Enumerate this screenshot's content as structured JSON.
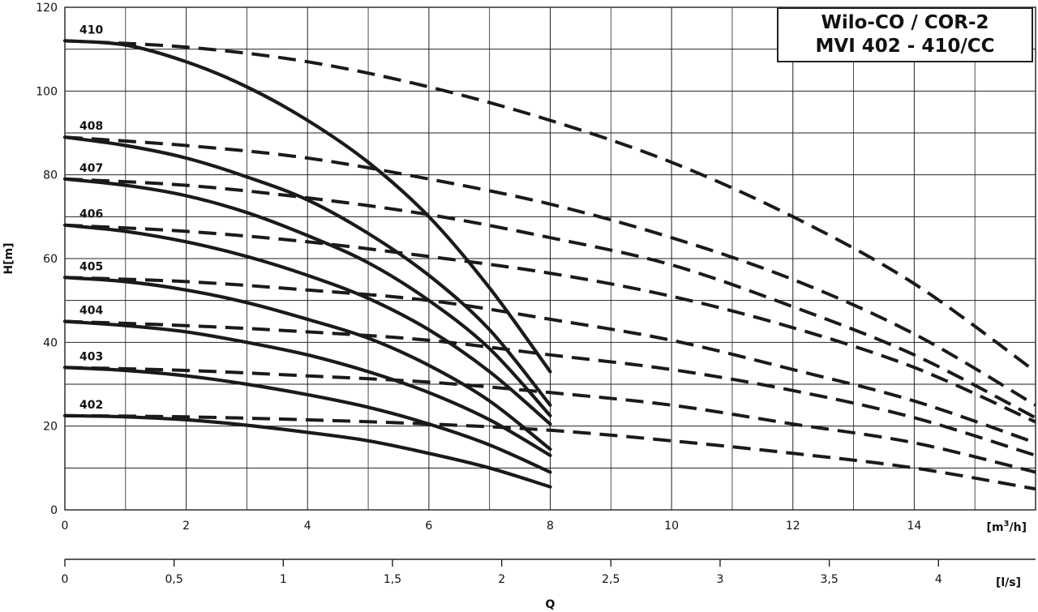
{
  "chart_data": {
    "type": "line",
    "title": [
      "Wilo-CO / COR-2",
      "MVI 402 - 410/CC"
    ],
    "ylabel": "H[m]",
    "xlabel": "Q",
    "x_unit_primary": "[m³/h]",
    "x_unit_secondary": "[l/s]",
    "xlim": [
      0,
      16
    ],
    "ylim": [
      0,
      120
    ],
    "x_ticks": [
      0,
      2,
      4,
      6,
      8,
      10,
      12,
      14
    ],
    "y_ticks": [
      0,
      20,
      40,
      60,
      80,
      100,
      120
    ],
    "secondary_x_ticks": [
      {
        "label": "0",
        "value": 0
      },
      {
        "label": "0,5",
        "value": 0.5
      },
      {
        "label": "1",
        "value": 1
      },
      {
        "label": "1,5",
        "value": 1.5
      },
      {
        "label": "2",
        "value": 2
      },
      {
        "label": "2,5",
        "value": 2.5
      },
      {
        "label": "3",
        "value": 3
      },
      {
        "label": "3,5",
        "value": 3.5
      },
      {
        "label": "4",
        "value": 4
      }
    ],
    "grid": true,
    "series": [
      {
        "name": "410",
        "solid": {
          "x": [
            0,
            1,
            2,
            3,
            4,
            5,
            6,
            7,
            8
          ],
          "y": [
            112,
            111,
            107,
            101,
            93,
            83,
            70,
            53,
            33
          ]
        },
        "dashed": {
          "x": [
            0,
            2,
            4,
            6,
            8,
            10,
            12,
            14,
            16
          ],
          "y": [
            112,
            110.5,
            107,
            101,
            93,
            83,
            70,
            54,
            33
          ]
        }
      },
      {
        "name": "408",
        "solid": {
          "x": [
            0,
            1,
            2,
            3,
            4,
            5,
            6,
            7,
            8
          ],
          "y": [
            89,
            87,
            84,
            79.5,
            74,
            66,
            56,
            43,
            25
          ]
        },
        "dashed": {
          "x": [
            0,
            2,
            4,
            6,
            8,
            10,
            12,
            14,
            16
          ],
          "y": [
            89,
            87,
            84,
            79,
            73,
            65,
            55,
            42,
            25
          ]
        }
      },
      {
        "name": "407",
        "solid": {
          "x": [
            0,
            1,
            2,
            3,
            4,
            5,
            6,
            7,
            8
          ],
          "y": [
            79,
            77.5,
            75,
            71,
            65.5,
            59,
            50,
            38.5,
            22.5
          ]
        },
        "dashed": {
          "x": [
            0,
            2,
            4,
            6,
            8,
            10,
            12,
            14,
            16
          ],
          "y": [
            79,
            77.5,
            74.5,
            70.5,
            65,
            58.5,
            48.5,
            37,
            22
          ]
        }
      },
      {
        "name": "406",
        "solid": {
          "x": [
            0,
            1,
            2,
            3,
            4,
            5,
            6,
            7,
            8
          ],
          "y": [
            68,
            66.5,
            64,
            60.5,
            56,
            50.5,
            43,
            33,
            20.5
          ]
        },
        "dashed": {
          "x": [
            0,
            2,
            4,
            6,
            8,
            10,
            12,
            14,
            16
          ],
          "y": [
            68,
            66.5,
            64,
            60.5,
            56.5,
            51,
            43.5,
            34,
            21
          ]
        }
      },
      {
        "name": "405",
        "solid": {
          "x": [
            0,
            1,
            2,
            3,
            4,
            5,
            6,
            7,
            8
          ],
          "y": [
            55.5,
            54.5,
            52.5,
            49.5,
            45.5,
            41,
            34.5,
            26,
            14.5
          ]
        },
        "dashed": {
          "x": [
            0,
            2,
            4,
            6,
            8,
            10,
            12,
            14,
            16
          ],
          "y": [
            55.5,
            54.5,
            52.5,
            50,
            45.5,
            40.5,
            33.5,
            26,
            16
          ]
        }
      },
      {
        "name": "404",
        "solid": {
          "x": [
            0,
            1,
            2,
            3,
            4,
            5,
            6,
            7,
            8
          ],
          "y": [
            45,
            44,
            42.5,
            40,
            37,
            33,
            28,
            21.5,
            13
          ]
        },
        "dashed": {
          "x": [
            0,
            2,
            4,
            6,
            8,
            10,
            12,
            14,
            16
          ],
          "y": [
            45,
            44,
            42.5,
            40.5,
            37,
            33.5,
            28.5,
            22,
            13
          ]
        }
      },
      {
        "name": "403",
        "solid": {
          "x": [
            0,
            1,
            2,
            3,
            4,
            5,
            6,
            7,
            8
          ],
          "y": [
            34,
            33.3,
            32,
            30,
            27.5,
            24.5,
            20.5,
            15.5,
            9
          ]
        },
        "dashed": {
          "x": [
            0,
            2,
            4,
            6,
            8,
            10,
            12,
            14,
            16
          ],
          "y": [
            34,
            33.3,
            32,
            30.5,
            28,
            25,
            20.5,
            16,
            9
          ]
        }
      },
      {
        "name": "402",
        "solid": {
          "x": [
            0,
            1,
            2,
            3,
            4,
            5,
            6,
            7,
            8
          ],
          "y": [
            22.5,
            22.2,
            21.5,
            20.2,
            18.5,
            16.5,
            13.5,
            10,
            5.5
          ]
        },
        "dashed": {
          "x": [
            0,
            2,
            4,
            6,
            8,
            10,
            12,
            14,
            16
          ],
          "y": [
            22.5,
            22.2,
            21.5,
            20.5,
            19,
            16.5,
            13.5,
            10,
            5
          ]
        }
      }
    ]
  }
}
